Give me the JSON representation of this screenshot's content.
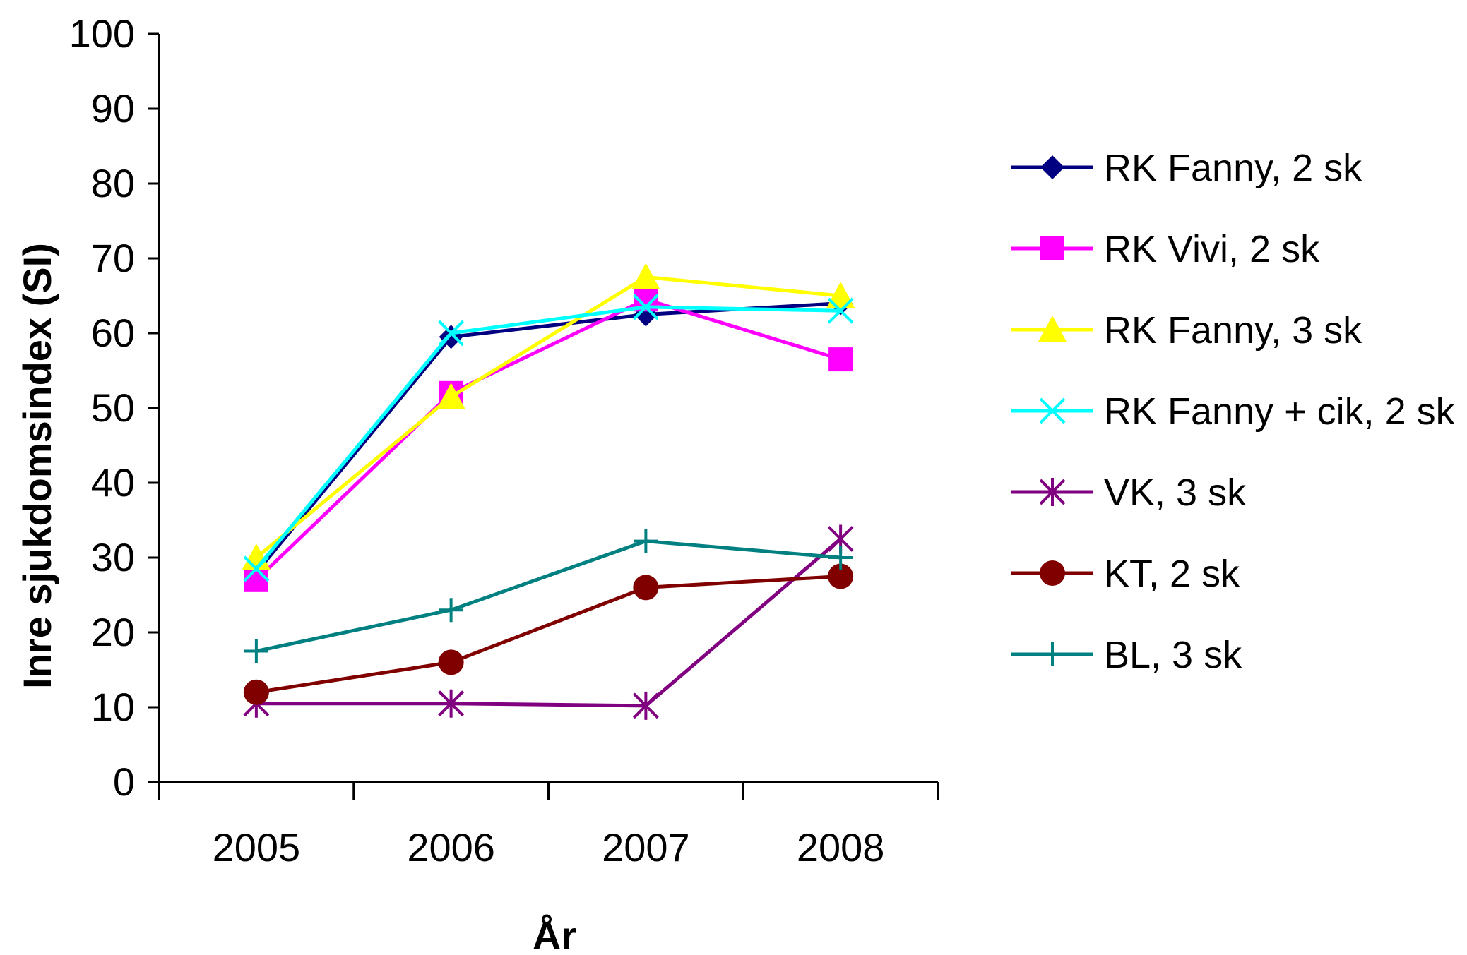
{
  "chart_data": {
    "type": "line",
    "title": "",
    "xlabel": "År",
    "ylabel": "Inre sjukdomsindex (SI)",
    "ylim": [
      0,
      100
    ],
    "yticks": [
      "0",
      "10",
      "20",
      "30",
      "40",
      "50",
      "60",
      "70",
      "80",
      "90",
      "100"
    ],
    "categories": [
      "2005",
      "2006",
      "2007",
      "2008"
    ],
    "grid": false,
    "legend": "right",
    "series": [
      {
        "name": "RK Fanny, 2 sk",
        "color": "#000080",
        "marker": "diamond",
        "values": [
          28,
          59.5,
          62.5,
          64
        ]
      },
      {
        "name": "RK Vivi, 2 sk",
        "color": "#ff00ff",
        "marker": "square",
        "values": [
          27,
          52,
          64.5,
          56.5
        ]
      },
      {
        "name": "RK Fanny, 3 sk",
        "color": "#ffff00",
        "marker": "triangle",
        "values": [
          30,
          51.5,
          67.5,
          65
        ]
      },
      {
        "name": "RK Fanny + cik, 2 sk",
        "color": "#00ffff",
        "marker": "x",
        "values": [
          28.5,
          60,
          63.5,
          63
        ]
      },
      {
        "name": "VK, 3 sk",
        "color": "#800080",
        "marker": "star",
        "values": [
          10.5,
          10.5,
          10.2,
          32.5
        ]
      },
      {
        "name": "KT, 2 sk",
        "color": "#800000",
        "marker": "circle",
        "values": [
          12,
          16,
          26,
          27.5
        ]
      },
      {
        "name": "BL, 3 sk",
        "color": "#008080",
        "marker": "plus",
        "values": [
          17.5,
          23,
          32.2,
          30
        ]
      }
    ]
  }
}
